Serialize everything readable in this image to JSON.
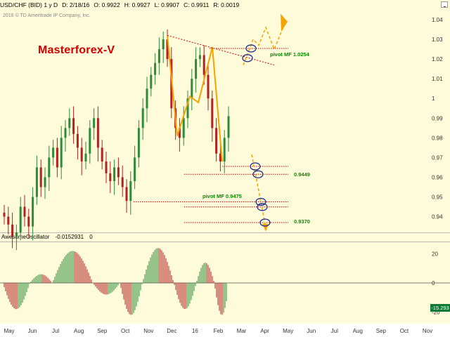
{
  "header": {
    "symbol": "USD/CHF (BID) 1 y D",
    "date": "D: 2/18/16",
    "open": "O: 0.9922",
    "high": "H: 0.9927",
    "low": "L: 0.9907",
    "close": "C: 0.9911",
    "range": "R: 0.0019"
  },
  "copyright": "2016 © TD Ameritrade IP Company, Inc.",
  "brand": "Masterforex-V",
  "oscillator": {
    "name": "AwesomeOscillator",
    "value": "-0.0152931",
    "extra": "0",
    "badge": "-15.293"
  },
  "colors": {
    "background": "#fdfbd9",
    "candle_up": "#2e8b3a",
    "candle_down": "#b22222",
    "annotation_red": "#d40000",
    "annotation_orange": "#f5a300",
    "annotation_blue": "#1e2a8a",
    "label_green": "#0a8a00"
  },
  "chart_data": [
    {
      "type": "candlestick",
      "title": "USD/CHF (BID) 1 y D",
      "x_tick_labels": [
        "May",
        "Jun",
        "Jul",
        "Aug",
        "Sep",
        "Oct",
        "Nov",
        "Dec",
        "16",
        "Feb",
        "Mar",
        "Apr",
        "May",
        "Jun",
        "Jul",
        "Aug",
        "Sep",
        "Oct",
        "Nov"
      ],
      "y_tick_labels": [
        "1.04",
        "1.03",
        "1.02",
        "1.01",
        "1",
        "0.99",
        "0.98",
        "0.97",
        "0.96",
        "0.95",
        "0.94"
      ],
      "ylim": [
        0.932,
        1.045
      ],
      "series_close_estimated": [
        0.94,
        0.936,
        0.93,
        0.932,
        0.945,
        0.94,
        0.935,
        0.95,
        0.965,
        0.955,
        0.96,
        0.97,
        0.975,
        0.965,
        0.98,
        0.985,
        0.99,
        0.982,
        0.975,
        0.968,
        0.972,
        0.985,
        0.99,
        0.975,
        0.968,
        0.962,
        0.958,
        0.965,
        0.96,
        0.955,
        0.948,
        0.958,
        0.97,
        0.985,
        0.995,
        1.005,
        1.012,
        1.018,
        1.025,
        1.03,
        1.02,
        0.995,
        0.985,
        0.98,
        0.99,
        1.0,
        1.01,
        1.02,
        1.022,
        1.012,
        1.0,
        0.985,
        0.972,
        0.968,
        0.98,
        0.991
      ],
      "annotations": [
        {
          "text": "pivot MF 1.0254",
          "value": 1.0254
        },
        {
          "text": "0.9449",
          "value": 0.9449
        },
        {
          "text": "pivot MF 0.9475",
          "value": 0.9475
        },
        {
          "text": "0.9370",
          "value": 0.937
        }
      ],
      "grid": false,
      "legend": "none"
    },
    {
      "type": "bar",
      "title": "AwesomeOscillator",
      "y_tick_labels": [
        "20",
        "0",
        "-20"
      ],
      "ylim": [
        -28,
        28
      ],
      "last_value": -15.293
    }
  ]
}
